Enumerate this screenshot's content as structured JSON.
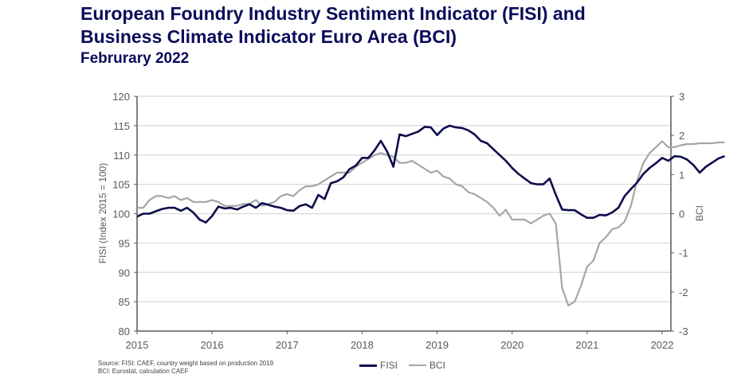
{
  "header": {
    "title_line1": "European Foundry Industry Sentiment Indicator (FISI) and",
    "title_line2": "Business Climate Indicator Euro Area (BCI)",
    "subtitle": "Februrary 2022"
  },
  "footer": {
    "source_line1": "Source: FISI: CAEF, country weight based on production 2019",
    "source_line2": "BCI: Eurostat, calculation CAEF"
  },
  "chart_data": {
    "type": "line",
    "title": "European Foundry Industry Sentiment Indicator (FISI) and Business Climate Indicator Euro Area (BCI)",
    "subtitle": "Februrary 2022",
    "xlabel": "",
    "ylabel": "FISI (Index 2015 = 100)",
    "y2label": "BCI",
    "xlim": [
      2015,
      2022.2
    ],
    "ylim": [
      80,
      120
    ],
    "y2lim": [
      -3,
      3
    ],
    "x_ticks": [
      "2015",
      "2016",
      "2017",
      "2018",
      "2019",
      "2020",
      "2021",
      "2022"
    ],
    "y_ticks": [
      "80",
      "85",
      "90",
      "95",
      "100",
      "105",
      "110",
      "115",
      "120"
    ],
    "y2_ticks": [
      "-3",
      "-2",
      "-1",
      "0",
      "1",
      "2",
      "3"
    ],
    "grid": true,
    "legend": "bottom",
    "colors": {
      "FISI": "#0c0c4e",
      "BCI": "#a6a6a6"
    },
    "x_start": "2015-01",
    "x_step": "month",
    "series": [
      {
        "name": "FISI",
        "axis": "left",
        "values": [
          99.5,
          100.0,
          100.0,
          100.4,
          100.8,
          101.0,
          101.0,
          100.5,
          101.0,
          100.2,
          99.0,
          98.5,
          99.6,
          101.2,
          100.9,
          101.0,
          100.7,
          101.2,
          101.6,
          101.0,
          101.8,
          101.5,
          101.2,
          101.0,
          100.6,
          100.5,
          101.3,
          101.6,
          101.0,
          103.2,
          102.5,
          105.2,
          105.5,
          106.2,
          107.6,
          108.2,
          109.5,
          109.5,
          110.8,
          112.4,
          110.6,
          108.0,
          113.5,
          113.2,
          113.6,
          114.0,
          114.8,
          114.7,
          113.4,
          114.5,
          115.0,
          114.7,
          114.6,
          114.2,
          113.5,
          112.4,
          112.0,
          111.0,
          110.0,
          109.0,
          107.8,
          106.8,
          106.0,
          105.2,
          105.0,
          105.0,
          106.0,
          103.2,
          100.7,
          100.6,
          100.6,
          99.9,
          99.3,
          99.3,
          99.8,
          99.7,
          100.2,
          101.0,
          103.0,
          104.2,
          105.3,
          106.8,
          107.8,
          108.6,
          109.5,
          109.0,
          109.8,
          109.7,
          109.2,
          108.3,
          107.0,
          108.0,
          108.7,
          109.4,
          109.8
        ]
      },
      {
        "name": "BCI",
        "axis": "right",
        "values": [
          0.15,
          0.15,
          0.35,
          0.45,
          0.45,
          0.4,
          0.45,
          0.35,
          0.4,
          0.3,
          0.3,
          0.3,
          0.35,
          0.3,
          0.2,
          0.2,
          0.2,
          0.25,
          0.25,
          0.35,
          0.2,
          0.25,
          0.3,
          0.45,
          0.5,
          0.45,
          0.6,
          0.7,
          0.7,
          0.75,
          0.85,
          0.95,
          1.05,
          1.05,
          1.05,
          1.2,
          1.3,
          1.4,
          1.5,
          1.55,
          1.5,
          1.45,
          1.3,
          1.3,
          1.35,
          1.25,
          1.15,
          1.05,
          1.1,
          0.95,
          0.9,
          0.75,
          0.7,
          0.55,
          0.5,
          0.4,
          0.3,
          0.15,
          -0.05,
          0.1,
          -0.15,
          -0.15,
          -0.15,
          -0.25,
          -0.15,
          -0.05,
          0.0,
          -0.25,
          -1.9,
          -2.35,
          -2.25,
          -1.85,
          -1.35,
          -1.2,
          -0.75,
          -0.6,
          -0.4,
          -0.35,
          -0.2,
          0.2,
          0.85,
          1.3,
          1.55,
          1.7,
          1.85,
          1.7,
          1.7,
          1.75,
          1.78,
          1.78,
          1.8,
          1.8,
          1.8,
          1.82,
          1.82
        ]
      }
    ]
  }
}
